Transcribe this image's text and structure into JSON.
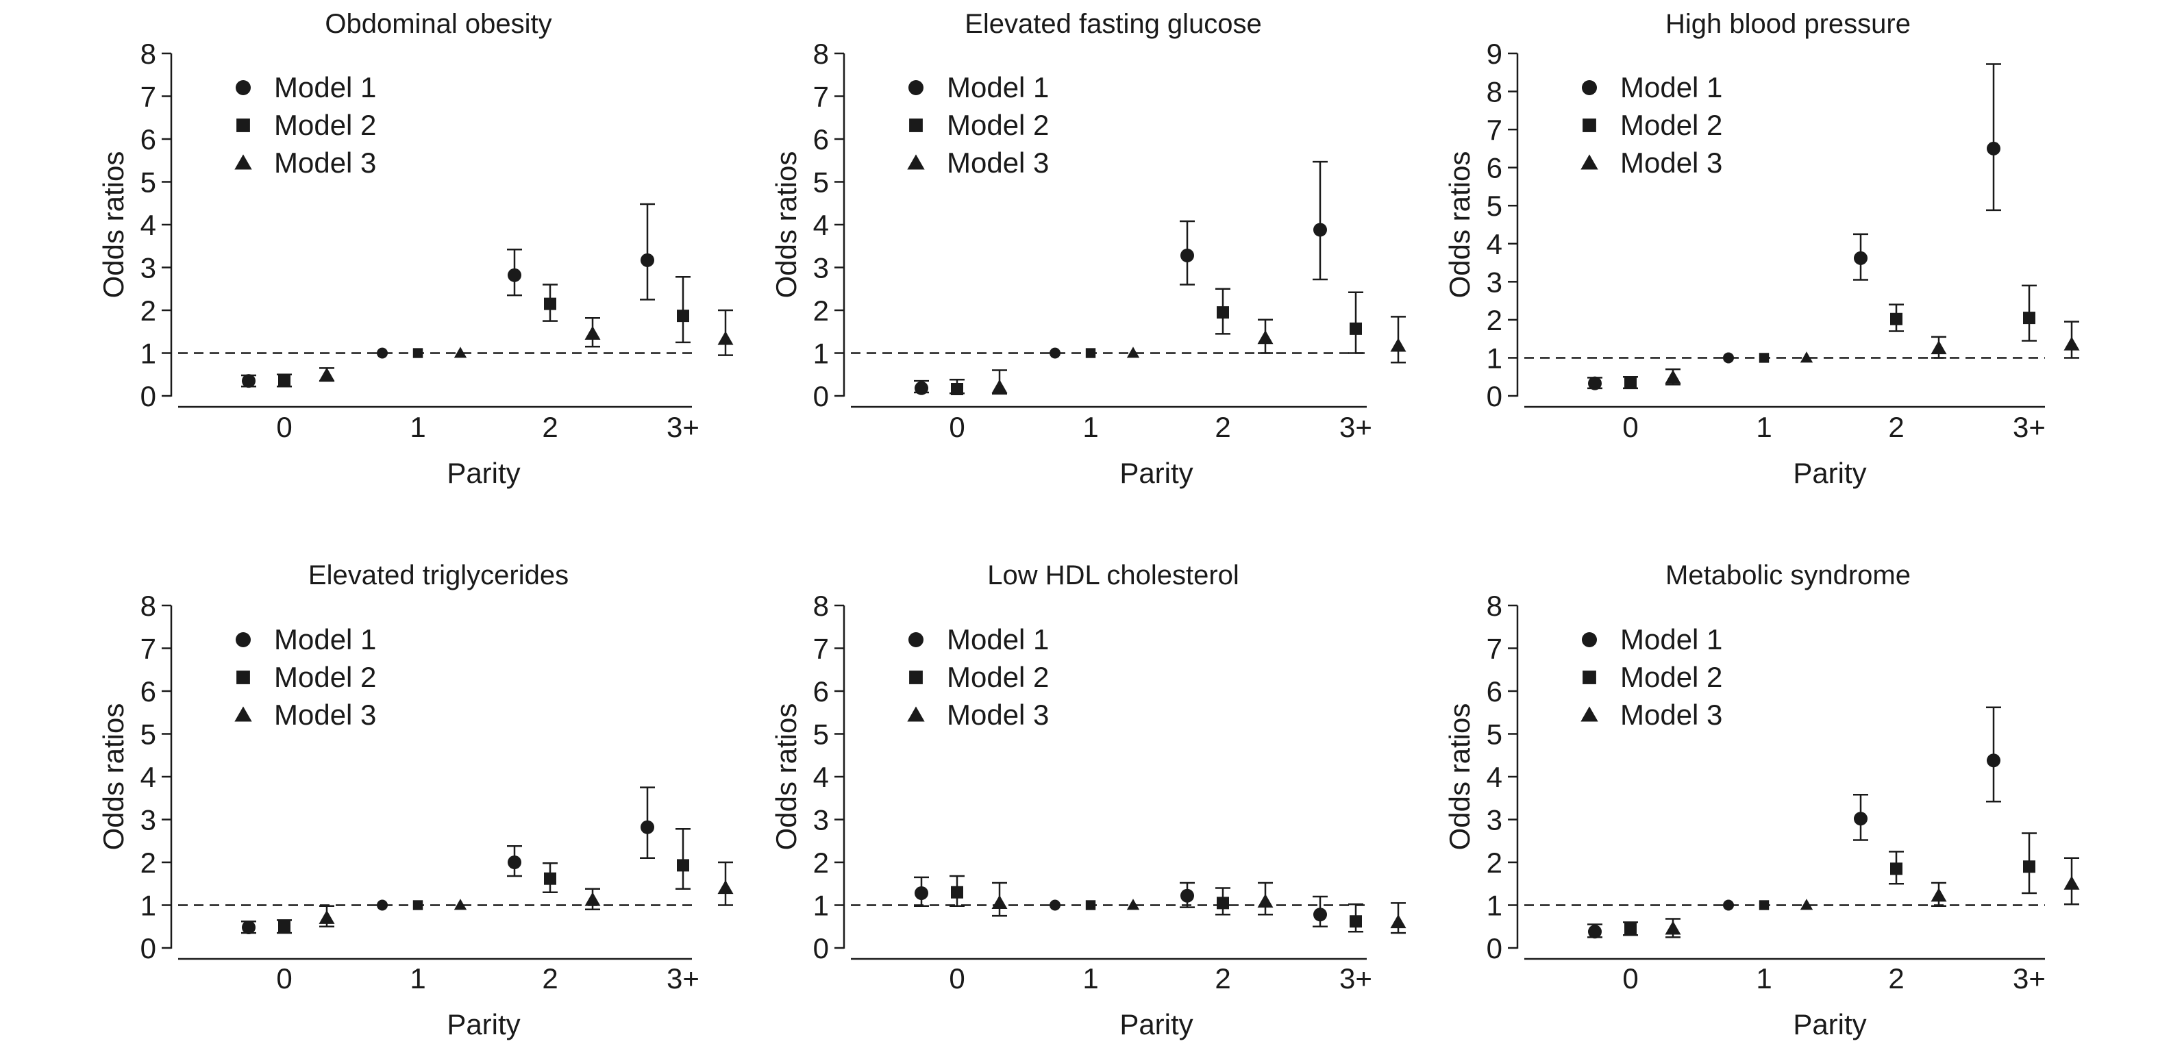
{
  "figure": {
    "legend_labels": [
      "Model 1",
      "Model 2",
      "Model 3"
    ],
    "legend_markers": [
      "circle",
      "square",
      "triangle"
    ],
    "mark_color": "#1a1a1a",
    "reference_line": {
      "value": 1,
      "style": "dashed"
    }
  },
  "chart_data": [
    {
      "type": "scatter",
      "title": "Obdominal obesity",
      "xlabel": "Parity",
      "ylabel": "Odds ratios",
      "categories": [
        "0",
        "1",
        "2",
        "3+"
      ],
      "ylim": [
        0,
        8
      ],
      "yticks": [
        0,
        1,
        2,
        3,
        4,
        5,
        6,
        7,
        8
      ],
      "legend_position": "top-left",
      "grid": false,
      "series": [
        {
          "name": "Model 1",
          "marker": "circle",
          "values": [
            0.35,
            1.0,
            2.82,
            3.17
          ],
          "lower": [
            0.22,
            1.0,
            2.35,
            2.25
          ],
          "upper": [
            0.48,
            1.0,
            3.42,
            4.48
          ]
        },
        {
          "name": "Model 2",
          "marker": "square",
          "values": [
            0.36,
            1.0,
            2.15,
            1.87
          ],
          "lower": [
            0.22,
            1.0,
            1.75,
            1.25
          ],
          "upper": [
            0.5,
            1.0,
            2.6,
            2.78
          ]
        },
        {
          "name": "Model 3",
          "marker": "triangle",
          "values": [
            0.48,
            1.0,
            1.45,
            1.33
          ],
          "lower": [
            0.35,
            1.0,
            1.15,
            0.95
          ],
          "upper": [
            0.65,
            1.0,
            1.82,
            2.0
          ]
        }
      ]
    },
    {
      "type": "scatter",
      "title": "Elevated fasting glucose",
      "xlabel": "Parity",
      "ylabel": "Odds ratios",
      "categories": [
        "0",
        "1",
        "2",
        "3+"
      ],
      "ylim": [
        0,
        8
      ],
      "yticks": [
        0,
        1,
        2,
        3,
        4,
        5,
        6,
        7,
        8
      ],
      "legend_position": "top-left",
      "grid": false,
      "series": [
        {
          "name": "Model 1",
          "marker": "circle",
          "values": [
            0.18,
            1.0,
            3.28,
            3.88
          ],
          "lower": [
            0.08,
            1.0,
            2.6,
            2.72
          ],
          "upper": [
            0.35,
            1.0,
            4.08,
            5.47
          ]
        },
        {
          "name": "Model 2",
          "marker": "square",
          "values": [
            0.16,
            1.0,
            1.95,
            1.57
          ],
          "lower": [
            0.06,
            1.0,
            1.45,
            1.0
          ],
          "upper": [
            0.38,
            1.0,
            2.5,
            2.42
          ]
        },
        {
          "name": "Model 3",
          "marker": "triangle",
          "values": [
            0.2,
            1.0,
            1.35,
            1.17
          ],
          "lower": [
            0.05,
            1.0,
            1.0,
            0.78
          ],
          "upper": [
            0.6,
            1.0,
            1.78,
            1.85
          ]
        }
      ]
    },
    {
      "type": "scatter",
      "title": "High blood pressure",
      "xlabel": "Parity",
      "ylabel": "Odds ratios",
      "categories": [
        "0",
        "1",
        "2",
        "3+"
      ],
      "ylim": [
        0,
        9
      ],
      "yticks": [
        0,
        1,
        2,
        3,
        4,
        5,
        6,
        7,
        8,
        9
      ],
      "legend_position": "top-left",
      "grid": false,
      "series": [
        {
          "name": "Model 1",
          "marker": "circle",
          "values": [
            0.33,
            1.0,
            3.62,
            6.5
          ],
          "lower": [
            0.2,
            1.0,
            3.05,
            4.88
          ],
          "upper": [
            0.48,
            1.0,
            4.25,
            8.72
          ]
        },
        {
          "name": "Model 2",
          "marker": "square",
          "values": [
            0.35,
            1.0,
            2.02,
            2.05
          ],
          "lower": [
            0.2,
            1.0,
            1.7,
            1.45
          ],
          "upper": [
            0.5,
            1.0,
            2.4,
            2.9
          ]
        },
        {
          "name": "Model 3",
          "marker": "triangle",
          "values": [
            0.48,
            1.0,
            1.25,
            1.35
          ],
          "lower": [
            0.3,
            1.0,
            1.0,
            1.0
          ],
          "upper": [
            0.7,
            1.0,
            1.55,
            1.95
          ]
        }
      ]
    },
    {
      "type": "scatter",
      "title": "Elevated triglycerides",
      "xlabel": "Parity",
      "ylabel": "Odds ratios",
      "categories": [
        "0",
        "1",
        "2",
        "3+"
      ],
      "ylim": [
        0,
        8
      ],
      "yticks": [
        0,
        1,
        2,
        3,
        4,
        5,
        6,
        7,
        8
      ],
      "legend_position": "top-left",
      "grid": false,
      "series": [
        {
          "name": "Model 1",
          "marker": "circle",
          "values": [
            0.48,
            1.0,
            2.0,
            2.82
          ],
          "lower": [
            0.35,
            1.0,
            1.68,
            2.1
          ],
          "upper": [
            0.62,
            1.0,
            2.38,
            3.75
          ]
        },
        {
          "name": "Model 2",
          "marker": "square",
          "values": [
            0.5,
            1.0,
            1.62,
            1.93
          ],
          "lower": [
            0.35,
            1.0,
            1.3,
            1.38
          ],
          "upper": [
            0.65,
            1.0,
            1.98,
            2.78
          ]
        },
        {
          "name": "Model 3",
          "marker": "triangle",
          "values": [
            0.7,
            1.0,
            1.12,
            1.4
          ],
          "lower": [
            0.5,
            1.0,
            0.9,
            1.0
          ],
          "upper": [
            0.98,
            1.0,
            1.38,
            2.0
          ]
        }
      ]
    },
    {
      "type": "scatter",
      "title": "Low HDL cholesterol",
      "xlabel": "Parity",
      "ylabel": "Odds ratios",
      "categories": [
        "0",
        "1",
        "2",
        "3+"
      ],
      "ylim": [
        0,
        8
      ],
      "yticks": [
        0,
        1,
        2,
        3,
        4,
        5,
        6,
        7,
        8
      ],
      "legend_position": "top-left",
      "grid": false,
      "series": [
        {
          "name": "Model 1",
          "marker": "circle",
          "values": [
            1.28,
            1.0,
            1.22,
            0.78
          ],
          "lower": [
            0.98,
            1.0,
            0.95,
            0.5
          ],
          "upper": [
            1.65,
            1.0,
            1.52,
            1.2
          ]
        },
        {
          "name": "Model 2",
          "marker": "square",
          "values": [
            1.3,
            1.0,
            1.05,
            0.62
          ],
          "lower": [
            0.98,
            1.0,
            0.78,
            0.38
          ],
          "upper": [
            1.68,
            1.0,
            1.4,
            1.02
          ]
        },
        {
          "name": "Model 3",
          "marker": "triangle",
          "values": [
            1.05,
            1.0,
            1.08,
            0.6
          ],
          "lower": [
            0.75,
            1.0,
            0.78,
            0.35
          ],
          "upper": [
            1.52,
            1.0,
            1.52,
            1.05
          ]
        }
      ]
    },
    {
      "type": "scatter",
      "title": "Metabolic syndrome",
      "xlabel": "Parity",
      "ylabel": "Odds ratios",
      "categories": [
        "0",
        "1",
        "2",
        "3+"
      ],
      "ylim": [
        0,
        8
      ],
      "yticks": [
        0,
        1,
        2,
        3,
        4,
        5,
        6,
        7,
        8
      ],
      "legend_position": "top-left",
      "grid": false,
      "series": [
        {
          "name": "Model 1",
          "marker": "circle",
          "values": [
            0.38,
            1.0,
            3.02,
            4.38
          ],
          "lower": [
            0.25,
            1.0,
            2.52,
            3.42
          ],
          "upper": [
            0.55,
            1.0,
            3.58,
            5.62
          ]
        },
        {
          "name": "Model 2",
          "marker": "square",
          "values": [
            0.45,
            1.0,
            1.85,
            1.9
          ],
          "lower": [
            0.3,
            1.0,
            1.5,
            1.28
          ],
          "upper": [
            0.6,
            1.0,
            2.25,
            2.68
          ]
        },
        {
          "name": "Model 3",
          "marker": "triangle",
          "values": [
            0.45,
            1.0,
            1.22,
            1.5
          ],
          "lower": [
            0.25,
            1.0,
            0.98,
            1.02
          ],
          "upper": [
            0.68,
            1.0,
            1.52,
            2.1
          ]
        }
      ]
    }
  ]
}
